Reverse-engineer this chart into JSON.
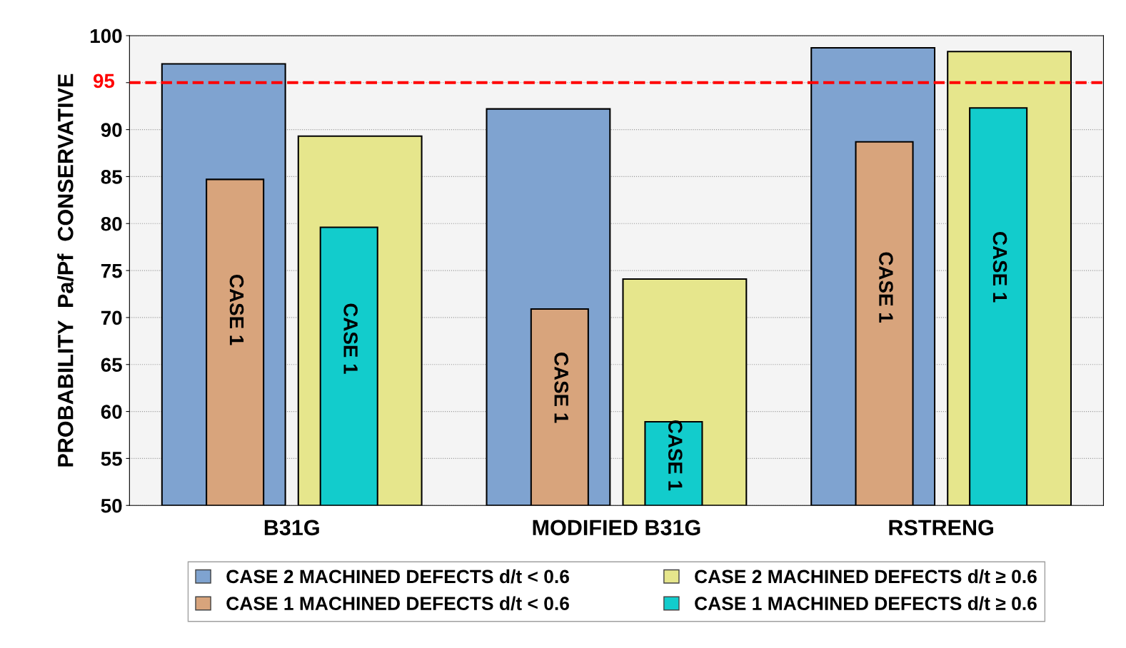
{
  "chart_data": {
    "type": "bar",
    "ylabel": "PROBABILITY  Pa/Pf  CONSERVATIVE",
    "categories": [
      "B31G",
      "MODIFIED B31G",
      "RSTRENG"
    ],
    "series": [
      {
        "name": "CASE 2 MACHINED DEFECTS d/t < 0.6",
        "color": "#7fa3d0",
        "values": [
          97.0,
          92.2,
          98.7
        ]
      },
      {
        "name": "CASE 1 MACHINED DEFECTS d/t < 0.6",
        "color": "#d8a47c",
        "values": [
          84.7,
          70.9,
          88.7
        ],
        "value_labels": [
          "CASE 1",
          "CASE 1",
          "CASE 1"
        ]
      },
      {
        "name": "CASE 2 MACHINED DEFECTS d/t ≥ 0.6",
        "color": "#e6e68c",
        "values": [
          89.3,
          74.1,
          98.3
        ]
      },
      {
        "name": "CASE 1 MACHINED DEFECTS d/t ≥ 0.6",
        "color": "#12cccc",
        "values": [
          79.6,
          58.9,
          92.3
        ],
        "value_labels": [
          "CASE 1",
          "CASE 1",
          "CASE 1"
        ]
      }
    ],
    "ylim": [
      50,
      100
    ],
    "yticks": [
      50,
      55,
      60,
      65,
      70,
      75,
      80,
      85,
      90,
      95,
      100
    ],
    "ref_lines": [
      {
        "axis": "y",
        "value": 95,
        "label": "95",
        "color": "#ff0000",
        "line_style": "dashed"
      }
    ],
    "grid": "y",
    "legend": "bottom"
  }
}
